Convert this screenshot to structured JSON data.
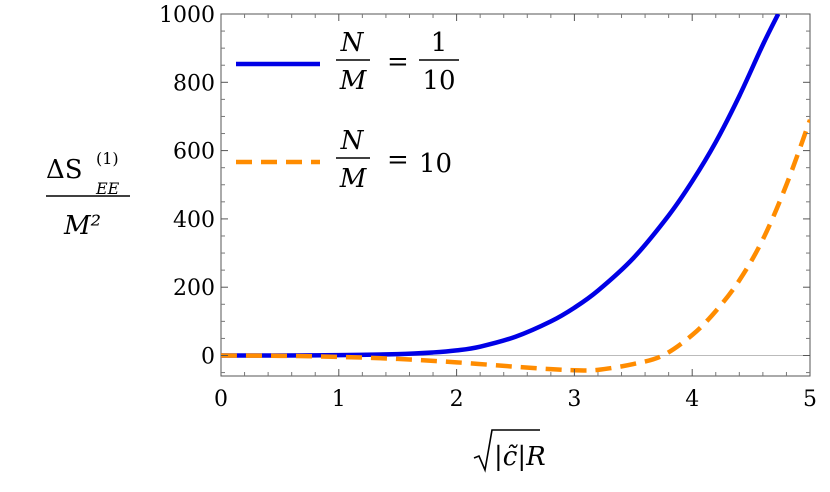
{
  "chart_data": {
    "type": "line",
    "title": "",
    "xlabel": "√|c̃|R",
    "ylabel": "ΔS_EE^(1) / M²",
    "xlim": [
      0,
      5
    ],
    "ylim": [
      -60,
      1000
    ],
    "x_ticks": [
      "0",
      "1",
      "2",
      "3",
      "4",
      "5"
    ],
    "y_ticks": [
      "0",
      "200",
      "400",
      "600",
      "800",
      "1000"
    ],
    "grid": false,
    "legend_position": "top-left",
    "series": [
      {
        "name": "N/M = 1/10",
        "legend": {
          "num": "N",
          "den": "M",
          "rhs_num": "1",
          "rhs_den": "10",
          "rhs": ""
        },
        "color": "#0000e6",
        "style": "solid",
        "x": [
          0,
          0.5,
          1.0,
          1.5,
          1.8,
          2.0,
          2.2,
          2.5,
          2.8,
          3.0,
          3.2,
          3.5,
          3.8,
          4.0,
          4.2,
          4.4,
          4.6,
          4.73
        ],
        "y": [
          0,
          0,
          1,
          4,
          9,
          15,
          26,
          55,
          100,
          140,
          190,
          285,
          410,
          510,
          625,
          760,
          910,
          1000
        ]
      },
      {
        "name": "N/M = 10",
        "legend": {
          "num": "N",
          "den": "M",
          "rhs_num": "",
          "rhs_den": "",
          "rhs": "10"
        },
        "color": "#ff8c00",
        "style": "dashed",
        "x": [
          0,
          0.5,
          1.0,
          1.5,
          2.0,
          2.5,
          2.8,
          3.0,
          3.2,
          3.5,
          3.75,
          4.0,
          4.2,
          4.4,
          4.6,
          4.8,
          5.0
        ],
        "y": [
          0,
          -1,
          -4,
          -10,
          -20,
          -33,
          -40,
          -43,
          -42,
          -25,
          0,
          60,
          130,
          220,
          340,
          500,
          690
        ]
      }
    ]
  }
}
